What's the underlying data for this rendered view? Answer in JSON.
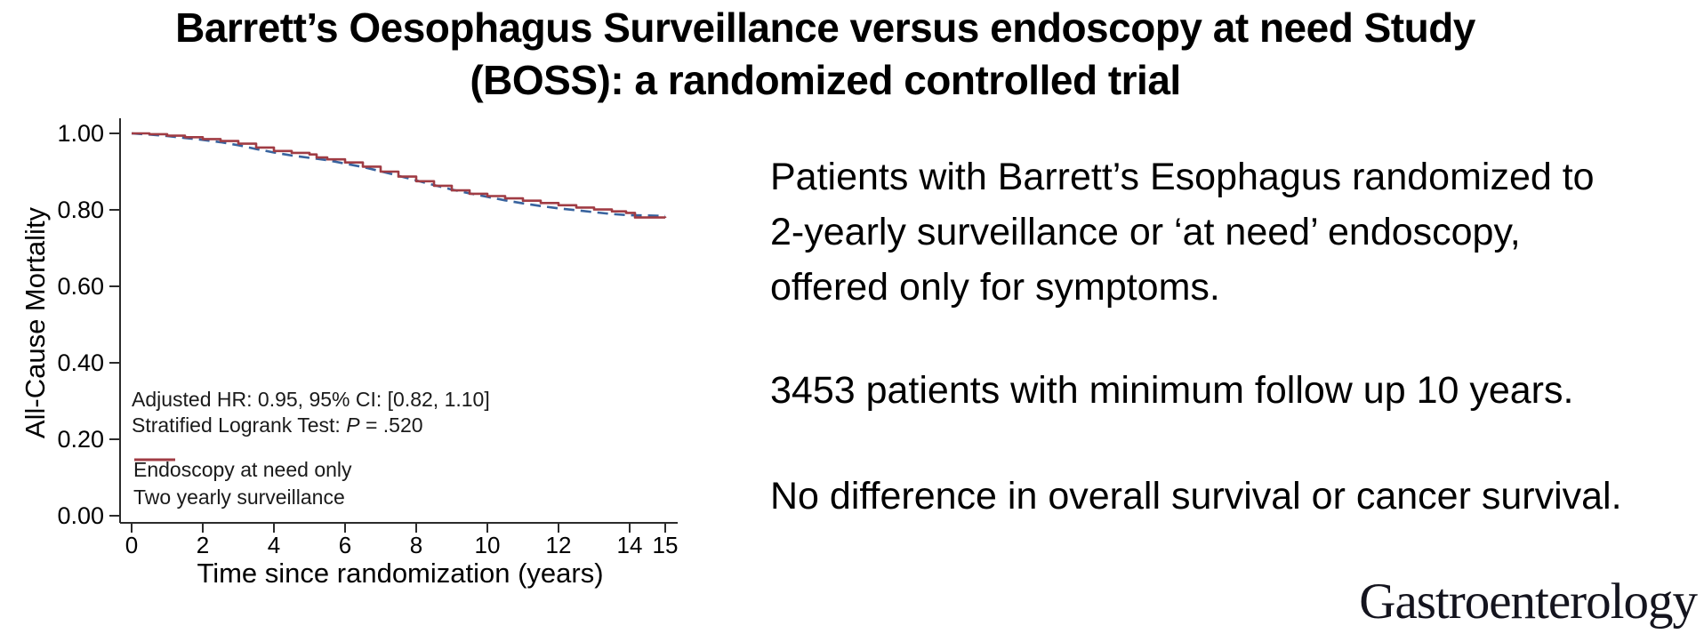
{
  "title": {
    "line1": "Barrett’s Oesophagus Surveillance versus endoscopy at need Study",
    "line2": "(BOSS): a randomized controlled trial"
  },
  "summary": {
    "para1_lines": [
      "Patients with Barrett’s Esophagus randomized to",
      "2-yearly surveillance or ‘at need’ endoscopy,",
      "offered only for symptoms."
    ],
    "para2": "3453 patients with minimum follow up 10 years.",
    "para3": "No difference in overall survival or cancer survival."
  },
  "journal": {
    "name": "Gastroenterology"
  },
  "chart_data": {
    "type": "line",
    "subtype": "kaplan-meier-step",
    "title": "",
    "xlabel": "Time since randomization (years)",
    "ylabel": "All-Cause Mortality",
    "xlim": [
      0,
      15.4
    ],
    "ylim": [
      0,
      1.04
    ],
    "x_ticks": [
      0,
      2,
      4,
      6,
      8,
      10,
      12,
      14,
      15
    ],
    "y_ticks": [
      {
        "value": 0.0,
        "label": "0.00"
      },
      {
        "value": 0.2,
        "label": "0.20"
      },
      {
        "value": 0.4,
        "label": "0.40"
      },
      {
        "value": 0.6,
        "label": "0.60"
      },
      {
        "value": 0.8,
        "label": "0.80"
      },
      {
        "value": 1.0,
        "label": "1.00"
      }
    ],
    "grid": false,
    "legend_position": "inside-bottom-left",
    "axis_color": "#2b2b2b",
    "annotation": {
      "line1": "Adjusted HR: 0.95, 95% CI: [0.82, 1.10]",
      "line2_prefix": "Stratified Logrank Test: ",
      "line2_italic": "P",
      "line2_suffix": " = .520"
    },
    "series": [
      {
        "name": "Endoscopy at need only",
        "color": "#38639E",
        "style": "dashed",
        "dash": "12 7",
        "sample_dash": "13 7 13 7 3 40",
        "x": [
          0,
          0.5,
          1,
          1.5,
          2,
          2.5,
          3,
          3.5,
          4,
          4.5,
          5,
          5.5,
          6,
          6.5,
          7,
          7.5,
          8,
          8.5,
          9,
          9.5,
          10,
          10.5,
          11,
          11.5,
          12,
          12.5,
          13,
          13.5,
          14,
          14.6,
          15
        ],
        "y": [
          1.0,
          0.997,
          0.993,
          0.988,
          0.983,
          0.977,
          0.969,
          0.959,
          0.95,
          0.942,
          0.936,
          0.93,
          0.921,
          0.912,
          0.901,
          0.889,
          0.877,
          0.865,
          0.853,
          0.843,
          0.834,
          0.825,
          0.817,
          0.81,
          0.804,
          0.799,
          0.794,
          0.789,
          0.786,
          0.785,
          0.784
        ]
      },
      {
        "name": "Two yearly surveillance",
        "color": "#A03C44",
        "style": "solid",
        "dash": null,
        "sample_dash": null,
        "x": [
          0,
          0.5,
          1,
          1.5,
          2,
          2.5,
          3,
          3.5,
          4,
          4.5,
          5,
          5.2,
          5.5,
          6,
          6.5,
          7,
          7.5,
          8,
          8.5,
          9,
          9.5,
          10,
          10.5,
          11,
          11.5,
          12,
          12.5,
          13,
          13.5,
          13.9,
          14.15,
          15
        ],
        "y": [
          1.0,
          0.998,
          0.994,
          0.99,
          0.985,
          0.98,
          0.973,
          0.963,
          0.954,
          0.949,
          0.945,
          0.937,
          0.932,
          0.924,
          0.913,
          0.9,
          0.887,
          0.875,
          0.863,
          0.851,
          0.842,
          0.836,
          0.83,
          0.824,
          0.818,
          0.812,
          0.806,
          0.801,
          0.796,
          0.792,
          0.78,
          0.779
        ]
      }
    ]
  }
}
